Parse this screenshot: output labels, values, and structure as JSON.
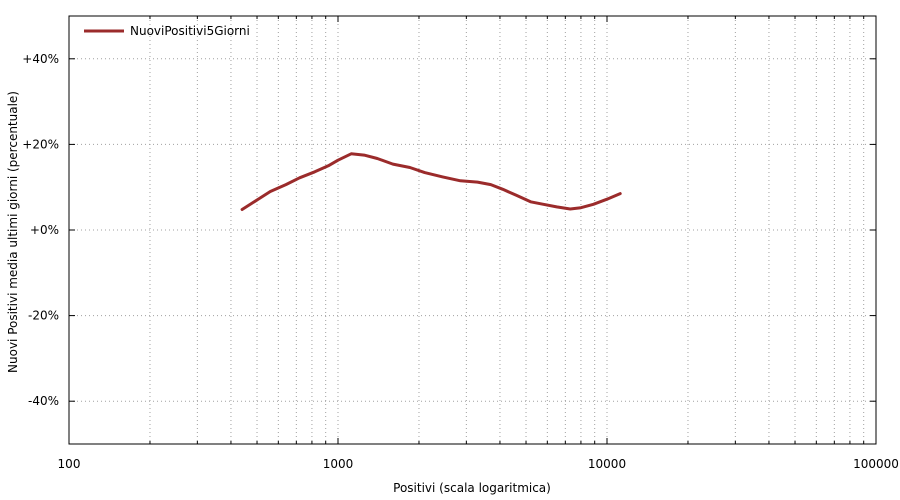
{
  "chart_data": {
    "type": "line",
    "title": "",
    "xlabel": "Positivi (scala logaritmica)",
    "ylabel": "Nuovi Positivi media ultimi giorni (percentuale)",
    "xscale": "log",
    "xlim": [
      100,
      100000
    ],
    "ylim": [
      -50,
      50
    ],
    "xticks": [
      {
        "value": 100,
        "label": "100"
      },
      {
        "value": 1000,
        "label": "1000"
      },
      {
        "value": 10000,
        "label": "10000"
      },
      {
        "value": 100000,
        "label": "100000"
      }
    ],
    "yticks": [
      {
        "value": 40,
        "label": "+40%"
      },
      {
        "value": 20,
        "label": "+20%"
      },
      {
        "value": 0,
        "label": "+0%"
      },
      {
        "value": -20,
        "label": "-20%"
      },
      {
        "value": -40,
        "label": "-40%"
      }
    ],
    "grid": true,
    "legend_position": "top-left",
    "series": [
      {
        "name": "NuoviPositivi5Giorni",
        "color": "#9b2b2b",
        "x": [
          440,
          500,
          560,
          640,
          720,
          820,
          920,
          1000,
          1120,
          1250,
          1400,
          1600,
          1850,
          2100,
          2450,
          2850,
          3300,
          3700,
          4100,
          4600,
          5200,
          5800,
          6500,
          7300,
          8000,
          8900,
          10000,
          11200
        ],
        "y": [
          4.8,
          7.0,
          9.0,
          10.6,
          12.2,
          13.6,
          15.0,
          16.3,
          17.8,
          17.5,
          16.7,
          15.4,
          14.6,
          13.4,
          12.4,
          11.5,
          11.2,
          10.6,
          9.5,
          8.1,
          6.6,
          6.0,
          5.4,
          4.9,
          5.2,
          6.0,
          7.2,
          8.5
        ]
      }
    ]
  }
}
